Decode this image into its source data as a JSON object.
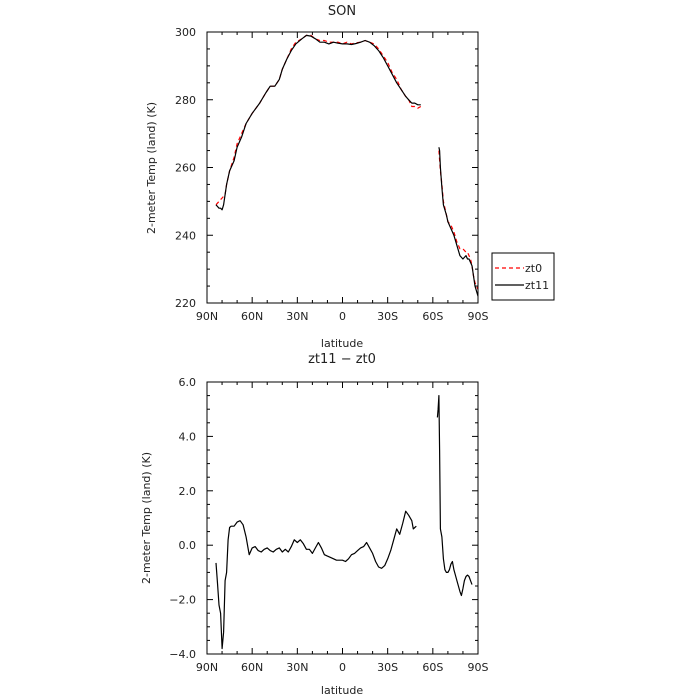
{
  "chart_data": [
    {
      "type": "line",
      "title": "SON",
      "xlabel": "latitude",
      "ylabel": "2-meter Temp (land) (K)",
      "xlim": [
        -90,
        90
      ],
      "ylim": [
        220,
        300
      ],
      "x_ticks": [
        -90,
        -60,
        -30,
        0,
        30,
        60,
        90
      ],
      "x_tick_labels": [
        "90N",
        "60N",
        "30N",
        "0",
        "30S",
        "60S",
        "90S"
      ],
      "y_ticks": [
        220,
        240,
        260,
        280,
        300
      ],
      "y_tick_labels": [
        "220",
        "240",
        "260",
        "280",
        "300"
      ],
      "legend": {
        "placement": "outside-right"
      },
      "series": [
        {
          "name": "zt0",
          "color": "#ff0000",
          "dash": "dashed",
          "segments": [
            [
              [
                -84,
                249
              ],
              [
                -82,
                250
              ],
              [
                -80,
                251
              ],
              [
                -78,
                252
              ],
              [
                -77,
                255
              ],
              [
                -75,
                259
              ],
              [
                -72,
                263
              ],
              [
                -70,
                267
              ],
              [
                -67,
                270
              ],
              [
                -64,
                273
              ],
              [
                -60,
                276
              ],
              [
                -55,
                279
              ],
              [
                -51,
                282
              ],
              [
                -48,
                284
              ],
              [
                -45,
                284
              ],
              [
                -42,
                286
              ],
              [
                -40,
                289
              ],
              [
                -37,
                292
              ],
              [
                -34,
                295
              ],
              [
                -31,
                297
              ],
              [
                -27,
                298
              ],
              [
                -24,
                299
              ],
              [
                -21,
                299
              ],
              [
                -18,
                298
              ],
              [
                -15,
                297.5
              ],
              [
                -12,
                297.5
              ],
              [
                -9,
                297
              ],
              [
                -6,
                297
              ],
              [
                -3,
                297
              ],
              [
                0,
                296.5
              ],
              [
                3,
                297
              ],
              [
                6,
                296.5
              ],
              [
                9,
                296.8
              ],
              [
                12,
                297
              ],
              [
                15,
                297.5
              ],
              [
                18,
                297
              ],
              [
                21,
                296.5
              ],
              [
                24,
                295
              ],
              [
                27,
                293
              ],
              [
                30,
                291
              ],
              [
                33,
                288
              ],
              [
                36,
                286
              ],
              [
                39,
                283
              ],
              [
                42,
                281
              ],
              [
                44,
                280
              ],
              [
                46,
                278
              ],
              [
                48,
                278
              ],
              [
                50,
                277.5
              ],
              [
                52,
                278
              ]
            ],
            [
              [
                64,
                265
              ],
              [
                65,
                259
              ],
              [
                66,
                255
              ],
              [
                67,
                250
              ],
              [
                69,
                246
              ],
              [
                70,
                244
              ],
              [
                72,
                243
              ],
              [
                74,
                241
              ],
              [
                76,
                238
              ],
              [
                78,
                236
              ],
              [
                80,
                236
              ],
              [
                82,
                235
              ],
              [
                83,
                235
              ],
              [
                84,
                234
              ],
              [
                85,
                233
              ],
              [
                86,
                231
              ],
              [
                87,
                228
              ],
              [
                88,
                226
              ],
              [
                90,
                224
              ]
            ]
          ]
        },
        {
          "name": "zt11",
          "color": "#000000",
          "dash": "solid",
          "segments": [
            [
              [
                -84,
                249
              ],
              [
                -83,
                248.5
              ],
              [
                -82,
                248
              ],
              [
                -81,
                248
              ],
              [
                -80,
                247.5
              ],
              [
                -79,
                249
              ],
              [
                -78,
                252
              ],
              [
                -77,
                255
              ],
              [
                -75,
                259
              ],
              [
                -72,
                262
              ],
              [
                -70,
                266
              ],
              [
                -67,
                269
              ],
              [
                -64,
                273
              ],
              [
                -60,
                276
              ],
              [
                -55,
                279
              ],
              [
                -51,
                282
              ],
              [
                -48,
                284
              ],
              [
                -45,
                284
              ],
              [
                -42,
                286
              ],
              [
                -40,
                289
              ],
              [
                -37,
                292
              ],
              [
                -34,
                294.5
              ],
              [
                -31,
                296.5
              ],
              [
                -27,
                298
              ],
              [
                -24,
                299
              ],
              [
                -21,
                298.8
              ],
              [
                -18,
                298
              ],
              [
                -15,
                297
              ],
              [
                -12,
                297
              ],
              [
                -9,
                296.5
              ],
              [
                -6,
                297
              ],
              [
                -3,
                296.7
              ],
              [
                0,
                296.5
              ],
              [
                3,
                296.5
              ],
              [
                6,
                296.3
              ],
              [
                9,
                296.6
              ],
              [
                12,
                297
              ],
              [
                15,
                297.5
              ],
              [
                18,
                297
              ],
              [
                21,
                296
              ],
              [
                24,
                294.5
              ],
              [
                27,
                292.5
              ],
              [
                30,
                290
              ],
              [
                33,
                287.5
              ],
              [
                36,
                285
              ],
              [
                39,
                283
              ],
              [
                42,
                281
              ],
              [
                44,
                280
              ],
              [
                46,
                279
              ],
              [
                48,
                279
              ],
              [
                50,
                278.5
              ],
              [
                52,
                278.5
              ]
            ],
            [
              [
                64,
                266
              ],
              [
                64.5,
                265
              ],
              [
                65,
                260
              ],
              [
                66,
                254
              ],
              [
                67,
                249
              ],
              [
                69,
                246
              ],
              [
                70,
                244
              ],
              [
                72,
                242
              ],
              [
                74,
                240
              ],
              [
                76,
                237
              ],
              [
                78,
                234
              ],
              [
                80,
                233
              ],
              [
                82,
                234
              ],
              [
                83,
                233
              ],
              [
                84,
                233
              ],
              [
                85,
                232
              ],
              [
                86,
                231
              ],
              [
                87,
                228
              ],
              [
                88,
                225
              ],
              [
                90,
                222
              ]
            ]
          ]
        }
      ]
    },
    {
      "type": "line",
      "title": "zt11 − zt0",
      "xlabel": "latitude",
      "ylabel": "2-meter Temp (land) (K)",
      "xlim": [
        -90,
        90
      ],
      "ylim": [
        -4,
        6
      ],
      "x_ticks": [
        -90,
        -60,
        -30,
        0,
        30,
        60,
        90
      ],
      "x_tick_labels": [
        "90N",
        "60N",
        "30N",
        "0",
        "30S",
        "60S",
        "90S"
      ],
      "y_ticks": [
        -4,
        -2,
        0,
        2,
        4,
        6
      ],
      "y_tick_labels": [
        "−4.0",
        "−2.0",
        "0.0",
        "2.0",
        "4.0",
        "6.0"
      ],
      "series": [
        {
          "color": "#000000",
          "dash": "solid",
          "segments": [
            [
              [
                -84,
                -0.65
              ],
              [
                -83,
                -1.4
              ],
              [
                -82,
                -2.2
              ],
              [
                -81,
                -2.5
              ],
              [
                -80,
                -3.8
              ],
              [
                -79,
                -3.2
              ],
              [
                -78,
                -1.3
              ],
              [
                -77,
                -1.0
              ],
              [
                -76,
                0.2
              ],
              [
                -75,
                0.65
              ],
              [
                -74,
                0.7
              ],
              [
                -72,
                0.7
              ],
              [
                -70,
                0.85
              ],
              [
                -68,
                0.9
              ],
              [
                -66,
                0.75
              ],
              [
                -64,
                0.3
              ],
              [
                -62,
                -0.35
              ],
              [
                -60,
                -0.1
              ],
              [
                -58,
                -0.05
              ],
              [
                -56,
                -0.2
              ],
              [
                -54,
                -0.25
              ],
              [
                -52,
                -0.15
              ],
              [
                -50,
                -0.1
              ],
              [
                -48,
                -0.2
              ],
              [
                -46,
                -0.25
              ],
              [
                -44,
                -0.15
              ],
              [
                -42,
                -0.1
              ],
              [
                -40,
                -0.25
              ],
              [
                -38,
                -0.15
              ],
              [
                -36,
                -0.25
              ],
              [
                -34,
                -0.05
              ],
              [
                -32,
                0.2
              ],
              [
                -30,
                0.1
              ],
              [
                -28,
                0.2
              ],
              [
                -26,
                0.05
              ],
              [
                -24,
                -0.15
              ],
              [
                -22,
                -0.15
              ],
              [
                -20,
                -0.3
              ],
              [
                -18,
                -0.1
              ],
              [
                -16,
                0.1
              ],
              [
                -14,
                -0.1
              ],
              [
                -12,
                -0.35
              ],
              [
                -10,
                -0.4
              ],
              [
                -8,
                -0.45
              ],
              [
                -6,
                -0.5
              ],
              [
                -4,
                -0.55
              ],
              [
                -2,
                -0.55
              ],
              [
                0,
                -0.55
              ],
              [
                2,
                -0.6
              ],
              [
                4,
                -0.5
              ],
              [
                6,
                -0.35
              ],
              [
                8,
                -0.3
              ],
              [
                10,
                -0.2
              ],
              [
                12,
                -0.1
              ],
              [
                14,
                -0.05
              ],
              [
                16,
                0.1
              ],
              [
                18,
                -0.1
              ],
              [
                20,
                -0.3
              ],
              [
                22,
                -0.6
              ],
              [
                24,
                -0.8
              ],
              [
                26,
                -0.85
              ],
              [
                28,
                -0.75
              ],
              [
                30,
                -0.5
              ],
              [
                32,
                -0.2
              ],
              [
                34,
                0.2
              ],
              [
                36,
                0.6
              ],
              [
                38,
                0.4
              ],
              [
                40,
                0.8
              ],
              [
                42,
                1.25
              ],
              [
                44,
                1.1
              ],
              [
                46,
                0.9
              ],
              [
                47,
                0.6
              ],
              [
                48,
                0.65
              ],
              [
                49,
                0.7
              ]
            ],
            [
              [
                63,
                4.7
              ],
              [
                63.5,
                5.0
              ],
              [
                64,
                5.5
              ],
              [
                64.5,
                3.5
              ],
              [
                65,
                0.6
              ],
              [
                66,
                0.3
              ],
              [
                67,
                -0.5
              ],
              [
                68,
                -0.9
              ],
              [
                69,
                -1.0
              ],
              [
                70,
                -1.0
              ],
              [
                71,
                -0.9
              ],
              [
                72,
                -0.7
              ],
              [
                73,
                -0.6
              ],
              [
                74,
                -0.9
              ],
              [
                75,
                -1.1
              ],
              [
                76,
                -1.3
              ],
              [
                77,
                -1.5
              ],
              [
                78,
                -1.7
              ],
              [
                79,
                -1.85
              ],
              [
                80,
                -1.6
              ],
              [
                81,
                -1.3
              ],
              [
                82,
                -1.15
              ],
              [
                83,
                -1.1
              ],
              [
                84,
                -1.15
              ],
              [
                85,
                -1.3
              ],
              [
                86,
                -1.45
              ]
            ]
          ]
        }
      ]
    }
  ]
}
